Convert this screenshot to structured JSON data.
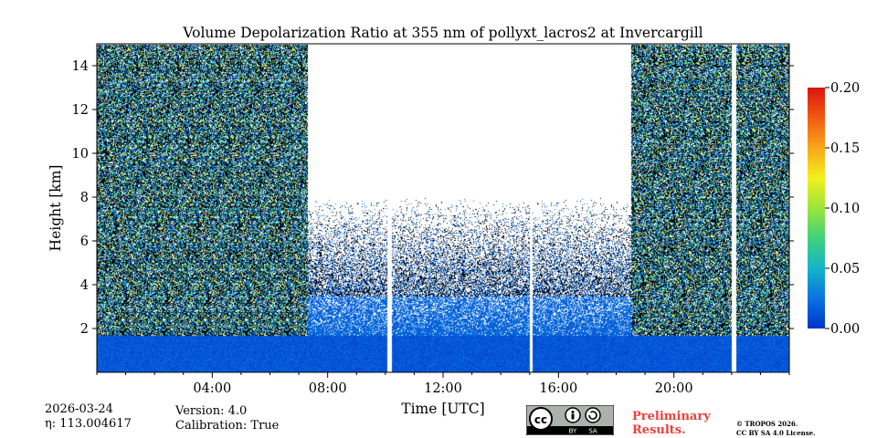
{
  "chart_data": {
    "type": "heatmap",
    "title": "Volume Depolarization Ratio at 355 nm of pollyxt_lacros2 at Invercargill",
    "xlabel": "Time [UTC]",
    "ylabel": "Height [km]",
    "xlim_hours": [
      0,
      24
    ],
    "ylim_km": [
      0,
      15
    ],
    "xticks": [
      {
        "hour": 4,
        "label": "04:00"
      },
      {
        "hour": 8,
        "label": "08:00"
      },
      {
        "hour": 12,
        "label": "12:00"
      },
      {
        "hour": 16,
        "label": "16:00"
      },
      {
        "hour": 20,
        "label": "20:00"
      }
    ],
    "yticks": [
      {
        "value": 2,
        "label": "2"
      },
      {
        "value": 4,
        "label": "4"
      },
      {
        "value": 6,
        "label": "6"
      },
      {
        "value": 8,
        "label": "8"
      },
      {
        "value": 10,
        "label": "10"
      },
      {
        "value": 12,
        "label": "12"
      },
      {
        "value": 14,
        "label": "14"
      }
    ],
    "colorbar": {
      "min": 0.0,
      "max": 0.2,
      "ticks": [
        "0.00",
        "0.05",
        "0.10",
        "0.15",
        "0.20"
      ],
      "colors": [
        "#0033cc",
        "#0a73e0",
        "#15b4c8",
        "#3fd27a",
        "#9be53a",
        "#f2f01e",
        "#f9a61a",
        "#f25a12",
        "#d9150f"
      ]
    },
    "regimes": [
      {
        "start_h": 0.0,
        "end_h": 7.3,
        "signal_top_km": 15,
        "note": "noisy full column"
      },
      {
        "start_h": 7.3,
        "end_h": 18.5,
        "signal_top_km": 8,
        "note": "clear daytime, low boundary layer"
      },
      {
        "start_h": 18.5,
        "end_h": 24.0,
        "signal_top_km": 15,
        "note": "noisy full column"
      }
    ],
    "data_gaps_hours": [
      {
        "start": 10.05,
        "end": 10.2
      },
      {
        "start": 15.0,
        "end": 15.1
      },
      {
        "start": 22.0,
        "end": 22.15
      }
    ]
  },
  "footer": {
    "date": "2026-03-24",
    "eta": "η: 113.004617",
    "version": "Version: 4.0",
    "calibration": "Calibration: True",
    "license_badge": "cc-by-sa-icon",
    "badge_cc": "cc",
    "badge_by": "BY",
    "badge_sa": "SA",
    "preliminary_line1": "Preliminary",
    "preliminary_line2": "Results.",
    "copyright_line1": "© TROPOS 2026.",
    "copyright_line2": "CC BY SA 4.0 License."
  }
}
